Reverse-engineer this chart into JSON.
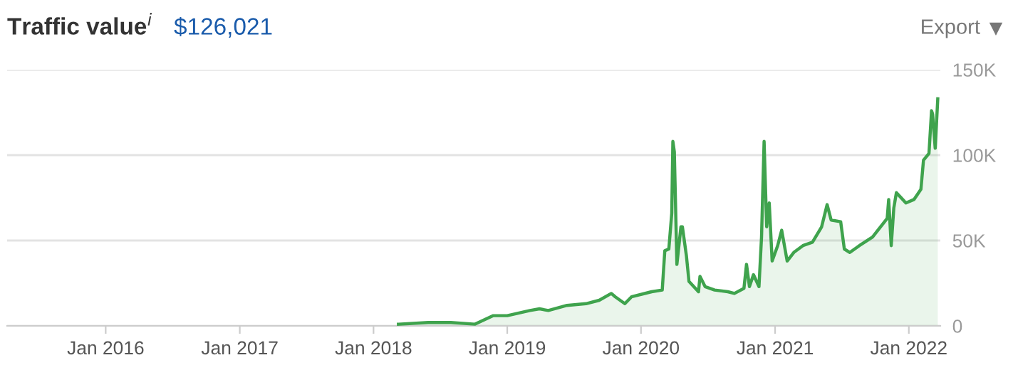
{
  "chart_data": {
    "type": "area",
    "title": "Traffic value$^{i}$",
    "subtitle": "$126,021",
    "annotations": [
      "Export"
    ],
    "x": [
      "2018-03-10",
      "2018-05-30",
      "2018-07-31",
      "2018-10-05",
      "2018-11-24",
      "2019-01-01",
      "2019-03-04",
      "2019-03-30",
      "2019-04-23",
      "2019-06-13",
      "2019-08-04",
      "2019-09-09",
      "2019-10-12",
      "2019-10-23",
      "2019-11-18",
      "2019-12-06",
      "2020-01-30",
      "2020-02-28",
      "2020-03-06",
      "2020-03-17",
      "2020-03-25",
      "2020-03-28",
      "2020-04-01",
      "2020-04-08",
      "2020-04-19",
      "2020-04-23",
      "2020-05-04",
      "2020-05-11",
      "2020-06-06",
      "2020-06-10",
      "2020-06-24",
      "2020-07-20",
      "2020-08-25",
      "2020-09-12",
      "2020-10-08",
      "2020-10-15",
      "2020-10-23",
      "2020-11-03",
      "2020-11-18",
      "2020-11-25",
      "2020-12-02",
      "2020-12-09",
      "2020-12-16",
      "2020-12-24",
      "2021-01-08",
      "2021-01-19",
      "2021-02-03",
      "2021-02-21",
      "2021-03-18",
      "2021-04-13",
      "2021-05-08",
      "2021-05-23",
      "2021-06-03",
      "2021-06-29",
      "2021-07-09",
      "2021-07-24",
      "2021-08-19",
      "2021-09-24",
      "2021-11-03",
      "2021-11-07",
      "2021-11-14",
      "2021-11-21",
      "2021-11-28",
      "2021-12-24",
      "2022-01-15",
      "2022-02-03",
      "2022-02-10",
      "2022-02-25",
      "2022-03-04",
      "2022-03-07",
      "2022-03-14",
      "2022-03-21"
    ],
    "series": [
      {
        "color": "#3fa34d",
        "values": [
          1000,
          2000,
          2000,
          1000,
          6000,
          6000,
          9000,
          10000,
          9000,
          12000,
          13000,
          15000,
          19000,
          17000,
          13000,
          17000,
          20000,
          21000,
          44000,
          45000,
          66000,
          108000,
          102000,
          36000,
          58000,
          58000,
          41000,
          26000,
          20000,
          29000,
          23000,
          21000,
          20000,
          19000,
          22000,
          36000,
          23000,
          30000,
          23000,
          52000,
          108000,
          58000,
          72000,
          38000,
          47000,
          56000,
          38000,
          43000,
          47000,
          49000,
          58000,
          71000,
          62000,
          61000,
          45000,
          43000,
          47000,
          52000,
          63000,
          74000,
          47000,
          69000,
          78000,
          72000,
          74000,
          80000,
          97000,
          101000,
          126000,
          124000,
          104000,
          133000
        ]
      }
    ],
    "xlim": [
      "2015-04-07",
      "2022-03-28"
    ],
    "xticks": [
      {
        "value": "2016-01-01",
        "label": "Jan 2016"
      },
      {
        "value": "2017-01-01",
        "label": "Jan 2017"
      },
      {
        "value": "2018-01-01",
        "label": "Jan 2018"
      },
      {
        "value": "2019-01-01",
        "label": "Jan 2019"
      },
      {
        "value": "2020-01-01",
        "label": "Jan 2020"
      },
      {
        "value": "2021-01-01",
        "label": "Jan 2021"
      },
      {
        "value": "2022-01-01",
        "label": "Jan 2022"
      }
    ],
    "ylim": [
      0,
      150000
    ],
    "yticks": [
      0,
      {
        "value": 50000,
        "label": "50K"
      },
      {
        "value": 100000,
        "label": "100K"
      },
      {
        "value": 150000,
        "label": "150K"
      }
    ],
    "grid": "y"
  }
}
